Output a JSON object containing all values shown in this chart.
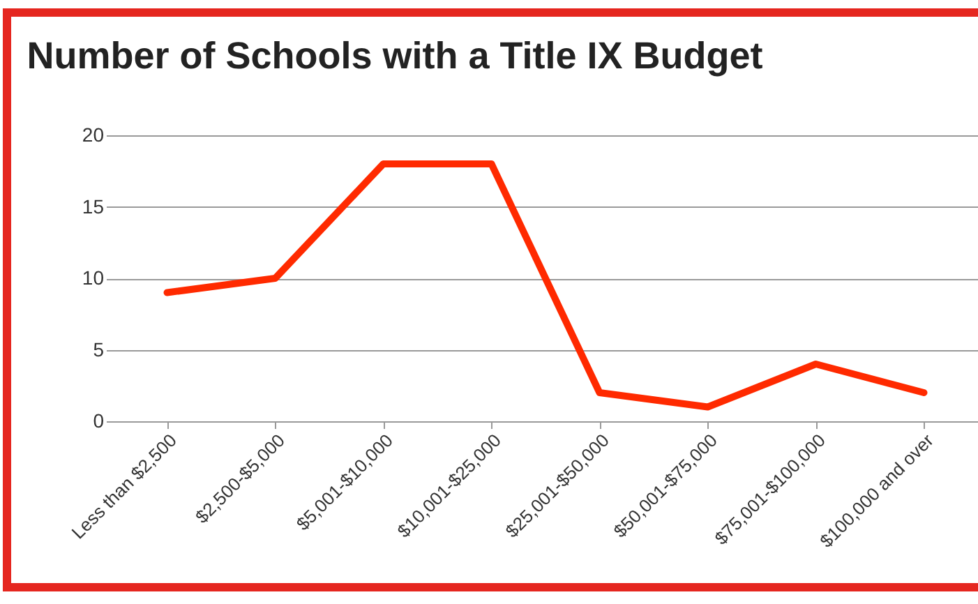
{
  "chart_data": {
    "type": "line",
    "title": "Number of Schools with a Title IX Budget",
    "categories": [
      "Less than $2,500",
      "$2,500-$5,000",
      "$5,001-$10,000",
      "$10,001-$25,000",
      "$25,001-$50,000",
      "$50,001-$75,000",
      "$75,001-$100,000",
      "$100,000 and over"
    ],
    "series": [
      {
        "color": "#ff2a00",
        "values": [
          9,
          10,
          18,
          18,
          2,
          1,
          4,
          2
        ]
      }
    ],
    "ylim": [
      0,
      20
    ],
    "yticks": [
      0,
      5,
      10,
      15,
      20
    ],
    "grid": "y",
    "legend": false,
    "marker": "none",
    "line_style": "solid"
  }
}
